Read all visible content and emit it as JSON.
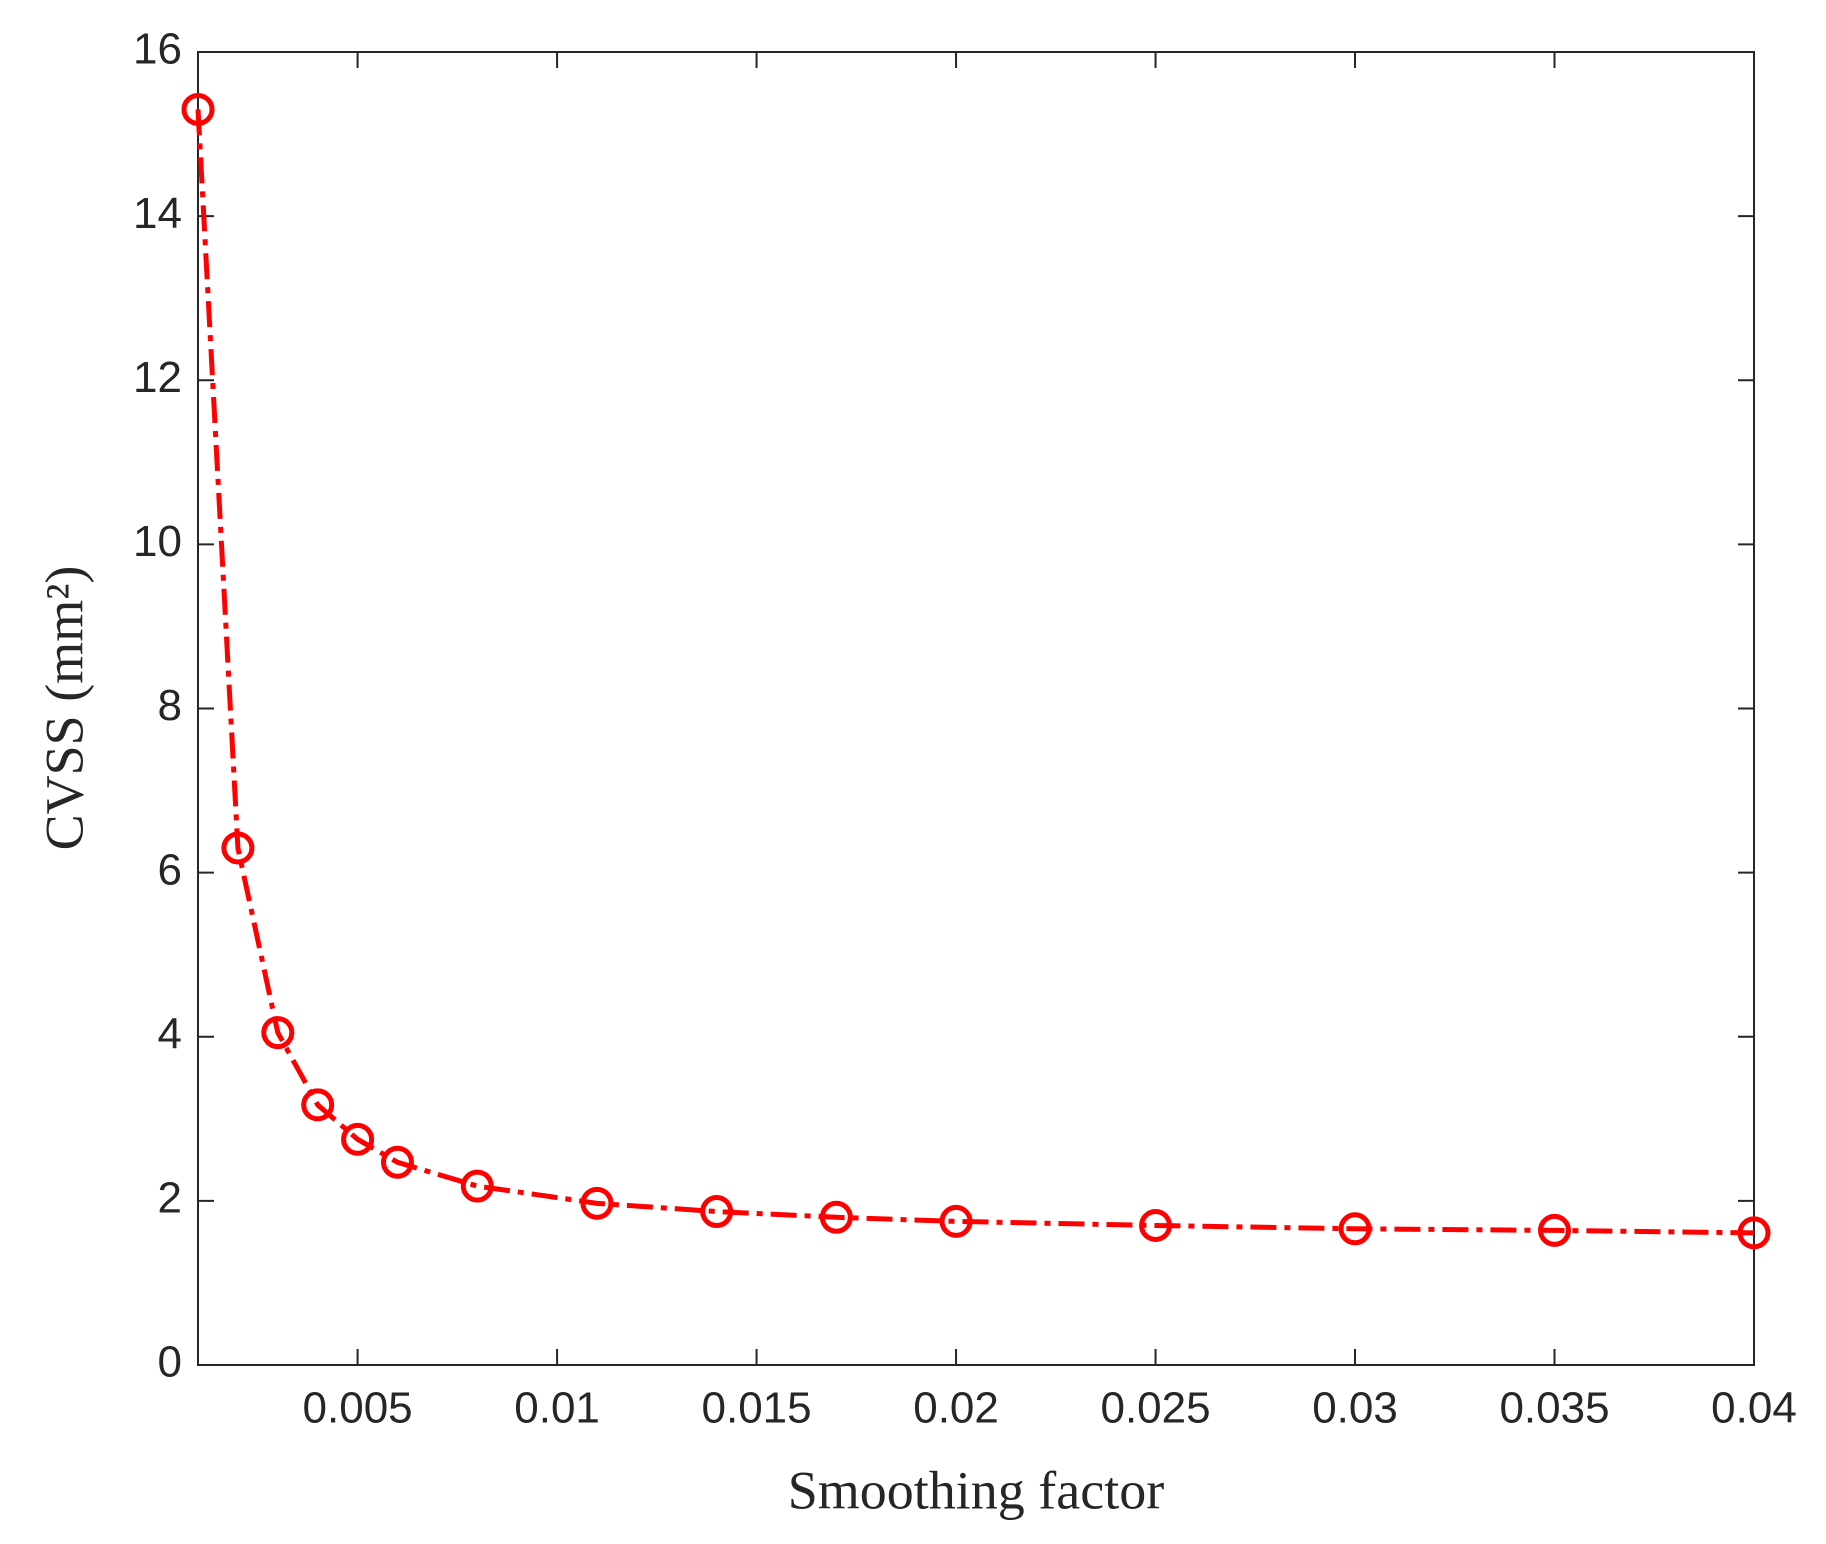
{
  "chart_data": {
    "type": "line",
    "x": [
      0.001,
      0.002,
      0.003,
      0.004,
      0.005,
      0.006,
      0.008,
      0.011,
      0.014,
      0.017,
      0.02,
      0.025,
      0.03,
      0.035,
      0.04
    ],
    "series": [
      {
        "color": "#ff0000",
        "values": [
          15.3,
          6.3,
          4.05,
          3.17,
          2.75,
          2.47,
          2.18,
          1.97,
          1.87,
          1.8,
          1.75,
          1.7,
          1.66,
          1.64,
          1.61
        ]
      }
    ],
    "xlabel": "Smoothing factor",
    "ylabel": "CVSS (mm²)",
    "xlim": [
      0.001,
      0.04
    ],
    "xticks": [
      0.005,
      0.01,
      0.015,
      0.02,
      0.025,
      0.03,
      0.035,
      0.04
    ],
    "ylim": [
      0,
      16
    ],
    "yticks": [
      0,
      2,
      4,
      6,
      8,
      10,
      12,
      14,
      16
    ]
  }
}
